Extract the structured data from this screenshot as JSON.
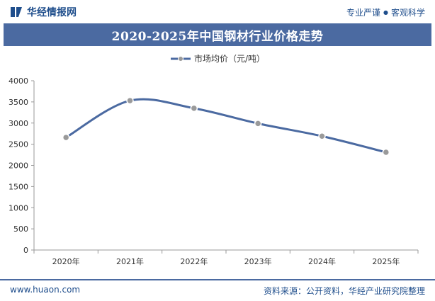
{
  "header": {
    "brand_name": "华经情报网",
    "tag_left": "专业严谨",
    "tag_right": "客观科学",
    "logo_icon": "huajing-logo-icon"
  },
  "title": "2020-2025年中国钢材行业价格走势",
  "chart_data": {
    "type": "line",
    "title": "2020-2025年中国钢材行业价格走势",
    "xlabel": "",
    "ylabel": "",
    "categories": [
      "2020年",
      "2021年",
      "2022年",
      "2023年",
      "2024年",
      "2025年"
    ],
    "series": [
      {
        "name": "市场均价（元/吨）",
        "values": [
          2660,
          3530,
          3350,
          2990,
          2690,
          2310
        ],
        "color": "#4b6aa1",
        "marker_color": "#9a9a9a"
      }
    ],
    "ylim": [
      0,
      4000
    ],
    "yticks": [
      0,
      500,
      1000,
      1500,
      2000,
      2500,
      3000,
      3500,
      4000
    ],
    "grid": false,
    "legend_position": "top-center",
    "smooth": true
  },
  "footer": {
    "url": "www.huaon.com",
    "source": "资料来源：公开资料，华经产业研究院整理"
  }
}
